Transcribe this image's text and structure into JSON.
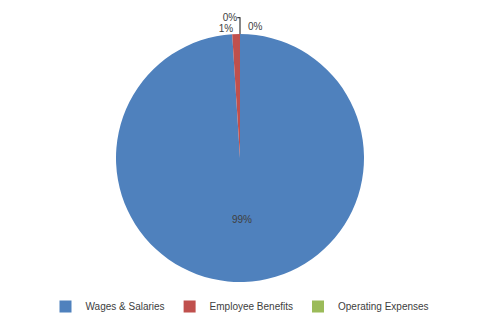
{
  "chart_data": {
    "type": "pie",
    "categories": [
      "Wages & Salaries",
      "Employee Benefits",
      "Operating Expenses"
    ],
    "values": [
      99,
      1,
      0
    ],
    "value_labels": [
      "99%",
      "1%",
      "0%"
    ],
    "colors": [
      "#4F81BD",
      "#C0504D",
      "#9BBB59"
    ],
    "data_labels": true,
    "legend": "bottom"
  }
}
